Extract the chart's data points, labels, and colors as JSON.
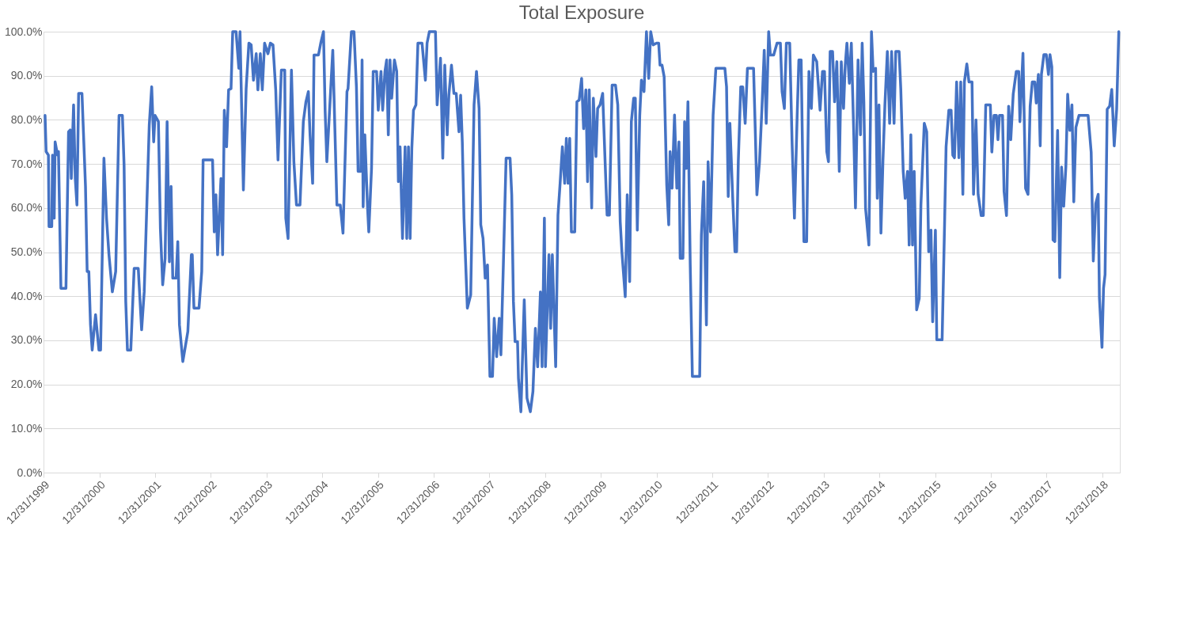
{
  "chart_data": {
    "type": "line",
    "title": "Total Exposure",
    "grid": "y",
    "legend": false,
    "marker": "none",
    "line_style": "solid",
    "xlim": [
      "1999-12-31",
      "2019-04-25"
    ],
    "xticks": [
      {
        "value": "1999-12-31",
        "label": "12/31/1999"
      },
      {
        "value": "2000-12-31",
        "label": "12/31/2000"
      },
      {
        "value": "2001-12-31",
        "label": "12/31/2001"
      },
      {
        "value": "2002-12-31",
        "label": "12/31/2002"
      },
      {
        "value": "2003-12-31",
        "label": "12/31/2003"
      },
      {
        "value": "2004-12-31",
        "label": "12/31/2004"
      },
      {
        "value": "2005-12-31",
        "label": "12/31/2005"
      },
      {
        "value": "2006-12-31",
        "label": "12/31/2006"
      },
      {
        "value": "2007-12-31",
        "label": "12/31/2007"
      },
      {
        "value": "2008-12-31",
        "label": "12/31/2008"
      },
      {
        "value": "2009-12-31",
        "label": "12/31/2009"
      },
      {
        "value": "2010-12-31",
        "label": "12/31/2010"
      },
      {
        "value": "2011-12-31",
        "label": "12/31/2011"
      },
      {
        "value": "2012-12-31",
        "label": "12/31/2012"
      },
      {
        "value": "2013-12-31",
        "label": "12/31/2013"
      },
      {
        "value": "2014-12-31",
        "label": "12/31/2014"
      },
      {
        "value": "2015-12-31",
        "label": "12/31/2015"
      },
      {
        "value": "2016-12-31",
        "label": "12/31/2016"
      },
      {
        "value": "2017-12-31",
        "label": "12/31/2017"
      },
      {
        "value": "2018-12-31",
        "label": "12/31/2018"
      }
    ],
    "ylim": [
      0,
      100
    ],
    "yticks": [
      {
        "value": 0,
        "label": "0.0%"
      },
      {
        "value": 10,
        "label": "10.0%"
      },
      {
        "value": 20,
        "label": "20.0%"
      },
      {
        "value": 30,
        "label": "30.0%"
      },
      {
        "value": 40,
        "label": "40.0%"
      },
      {
        "value": 50,
        "label": "50.0%"
      },
      {
        "value": 60,
        "label": "60.0%"
      },
      {
        "value": 70,
        "label": "70.0%"
      },
      {
        "value": 80,
        "label": "80.0%"
      },
      {
        "value": 90,
        "label": "90.0%"
      },
      {
        "value": 100,
        "label": "100.0%"
      }
    ],
    "series": [
      {
        "color": "#4472c4",
        "x": [
          "2000-01-10",
          "2000-01-17",
          "2000-02-01",
          "2000-02-05",
          "2000-02-23",
          "2000-02-28",
          "2000-03-10",
          "2000-03-16",
          "2000-04-01",
          "2000-04-07",
          "2000-04-23",
          "2000-05-26",
          "2000-06-12",
          "2000-06-23",
          "2000-06-30",
          "2000-07-15",
          "2000-07-26",
          "2000-08-06",
          "2000-08-17",
          "2000-09-08",
          "2000-10-01",
          "2000-10-12",
          "2000-10-23",
          "2000-11-03",
          "2000-11-14",
          "2000-12-06",
          "2000-12-28",
          "2001-01-08",
          "2001-01-30",
          "2001-02-16",
          "2001-03-04",
          "2001-03-26",
          "2001-04-17",
          "2001-05-09",
          "2001-05-31",
          "2001-06-11",
          "2001-06-22",
          "2001-07-03",
          "2001-07-25",
          "2001-08-16",
          "2001-09-12",
          "2001-10-04",
          "2001-10-21",
          "2001-11-23",
          "2001-12-09",
          "2001-12-22",
          "2001-12-31",
          "2002-01-22",
          "2002-02-04",
          "2002-02-19",
          "2002-03-07",
          "2002-03-20",
          "2002-04-04",
          "2002-04-15",
          "2002-04-26",
          "2002-05-18",
          "2002-05-29",
          "2002-06-09",
          "2002-07-01",
          "2002-08-03",
          "2002-08-26",
          "2002-09-01",
          "2002-09-12",
          "2002-10-15",
          "2002-11-02",
          "2002-11-11",
          "2003-01-12",
          "2003-01-23",
          "2003-02-03",
          "2003-02-14",
          "2003-03-08",
          "2003-03-19",
          "2003-03-30",
          "2003-04-14",
          "2003-04-27",
          "2003-05-13",
          "2003-05-24",
          "2003-06-15",
          "2003-07-03",
          "2003-07-11",
          "2003-08-02",
          "2003-08-20",
          "2003-09-07",
          "2003-09-22",
          "2003-10-07",
          "2003-10-25",
          "2003-11-05",
          "2003-11-21",
          "2003-12-04",
          "2003-12-19",
          "2004-01-10",
          "2004-01-26",
          "2004-02-12",
          "2004-03-01",
          "2004-03-16",
          "2004-04-07",
          "2004-04-29",
          "2004-05-06",
          "2004-05-21",
          "2004-06-12",
          "2004-06-28",
          "2004-07-15",
          "2004-08-07",
          "2004-08-29",
          "2004-09-15",
          "2004-10-01",
          "2004-10-12",
          "2004-10-29",
          "2004-11-07",
          "2004-12-06",
          "2004-12-21",
          "2005-01-08",
          "2005-01-19",
          "2005-01-30",
          "2005-03-10",
          "2005-04-06",
          "2005-04-28",
          "2005-05-16",
          "2005-06-11",
          "2005-06-18",
          "2005-07-10",
          "2005-07-27",
          "2005-08-12",
          "2005-08-23",
          "2005-09-10",
          "2005-09-18",
          "2005-09-25",
          "2005-10-06",
          "2005-10-24",
          "2005-11-01",
          "2005-11-19",
          "2005-11-30",
          "2005-12-22",
          "2006-01-02",
          "2006-01-20",
          "2006-01-31",
          "2006-02-15",
          "2006-02-26",
          "2006-03-09",
          "2006-03-20",
          "2006-03-31",
          "2006-04-18",
          "2006-05-03",
          "2006-05-14",
          "2006-05-25",
          "2006-06-10",
          "2006-06-27",
          "2006-07-08",
          "2006-07-19",
          "2006-07-30",
          "2006-08-10",
          "2006-08-21",
          "2006-09-06",
          "2006-09-19",
          "2006-10-16",
          "2006-11-07",
          "2006-11-18",
          "2006-12-03",
          "2007-01-12",
          "2007-01-23",
          "2007-02-14",
          "2007-03-01",
          "2007-03-14",
          "2007-03-30",
          "2007-04-10",
          "2007-04-27",
          "2007-05-13",
          "2007-05-28",
          "2007-06-15",
          "2007-06-26",
          "2007-07-07",
          "2007-07-18",
          "2007-08-09",
          "2007-08-31",
          "2007-09-22",
          "2007-10-08",
          "2007-10-25",
          "2007-11-05",
          "2007-11-20",
          "2007-12-04",
          "2007-12-19",
          "2008-01-04",
          "2008-01-21",
          "2008-02-01",
          "2008-02-17",
          "2008-03-05",
          "2008-03-16",
          "2008-04-01",
          "2008-04-19",
          "2008-05-15",
          "2008-05-26",
          "2008-06-06",
          "2008-06-17",
          "2008-07-03",
          "2008-07-09",
          "2008-07-25",
          "2008-08-16",
          "2008-09-03",
          "2008-09-25",
          "2008-10-12",
          "2008-10-28",
          "2008-11-12",
          "2008-11-30",
          "2008-12-11",
          "2008-12-26",
          "2009-01-02",
          "2009-01-25",
          "2009-02-05",
          "2009-02-16",
          "2009-03-10",
          "2009-03-25",
          "2009-04-08",
          "2009-04-23",
          "2009-05-08",
          "2009-05-19",
          "2009-05-30",
          "2009-06-10",
          "2009-06-21",
          "2009-07-13",
          "2009-07-27",
          "2009-08-11",
          "2009-08-27",
          "2009-09-09",
          "2009-09-24",
          "2009-10-05",
          "2009-10-16",
          "2009-11-01",
          "2009-11-12",
          "2009-11-29",
          "2009-12-10",
          "2009-12-26",
          "2010-01-12",
          "2010-01-28",
          "2010-02-10",
          "2010-02-25",
          "2010-03-15",
          "2010-04-06",
          "2010-04-21",
          "2010-05-07",
          "2010-05-18",
          "2010-06-09",
          "2010-06-22",
          "2010-07-08",
          "2010-07-19",
          "2010-08-03",
          "2010-08-14",
          "2010-08-27",
          "2010-09-12",
          "2010-09-23",
          "2010-10-10",
          "2010-10-26",
          "2010-11-10",
          "2010-11-23",
          "2010-12-09",
          "2010-12-31",
          "2011-01-14",
          "2011-01-23",
          "2011-02-05",
          "2011-02-19",
          "2011-03-08",
          "2011-03-21",
          "2011-03-30",
          "2011-04-12",
          "2011-04-28",
          "2011-05-13",
          "2011-05-27",
          "2011-06-04",
          "2011-06-22",
          "2011-07-03",
          "2011-07-14",
          "2011-07-25",
          "2011-08-09",
          "2011-08-23",
          "2011-10-10",
          "2011-10-21",
          "2011-11-05",
          "2011-11-23",
          "2011-12-04",
          "2011-12-20",
          "2012-01-06",
          "2012-01-24",
          "2012-03-23",
          "2012-04-03",
          "2012-04-14",
          "2012-04-25",
          "2012-05-13",
          "2012-05-28",
          "2012-06-08",
          "2012-06-19",
          "2012-07-05",
          "2012-07-18",
          "2012-08-03",
          "2012-08-18",
          "2012-09-27",
          "2012-10-08",
          "2012-10-19",
          "2012-11-05",
          "2012-11-21",
          "2012-12-06",
          "2012-12-19",
          "2013-01-04",
          "2013-01-15",
          "2013-02-06",
          "2013-02-28",
          "2013-03-22",
          "2013-04-02",
          "2013-04-17",
          "2013-04-30",
          "2013-05-22",
          "2013-06-07",
          "2013-06-22",
          "2013-07-10",
          "2013-07-21",
          "2013-08-05",
          "2013-08-23",
          "2013-09-10",
          "2013-09-25",
          "2013-10-11",
          "2013-10-24",
          "2013-11-15",
          "2013-12-07",
          "2013-12-23",
          "2014-01-05",
          "2014-01-20",
          "2014-01-31",
          "2014-02-11",
          "2014-02-27",
          "2014-03-12",
          "2014-03-27",
          "2014-04-12",
          "2014-04-25",
          "2014-05-10",
          "2014-05-21",
          "2014-06-01",
          "2014-06-17",
          "2014-06-30",
          "2014-07-16",
          "2014-07-27",
          "2014-08-13",
          "2014-08-29",
          "2014-09-09",
          "2014-09-20",
          "2014-10-01",
          "2014-10-23",
          "2014-11-09",
          "2014-11-20",
          "2014-12-06",
          "2014-12-17",
          "2014-12-28",
          "2015-01-10",
          "2015-01-23",
          "2015-02-05",
          "2015-02-21",
          "2015-03-08",
          "2015-03-21",
          "2015-04-06",
          "2015-04-17",
          "2015-05-09",
          "2015-05-20",
          "2015-06-05",
          "2015-06-18",
          "2015-07-03",
          "2015-07-14",
          "2015-07-25",
          "2015-08-05",
          "2015-08-16",
          "2015-09-01",
          "2015-09-18",
          "2015-09-29",
          "2015-10-21",
          "2015-11-06",
          "2015-11-19",
          "2015-12-04",
          "2015-12-15",
          "2016-01-02",
          "2016-01-11",
          "2016-02-15",
          "2016-03-02",
          "2016-03-12",
          "2016-03-30",
          "2016-04-14",
          "2016-04-25",
          "2016-05-06",
          "2016-05-20",
          "2016-06-04",
          "2016-06-16",
          "2016-06-30",
          "2016-07-10",
          "2016-07-26",
          "2016-08-09",
          "2016-08-29",
          "2016-09-08",
          "2016-09-24",
          "2016-10-08",
          "2016-10-28",
          "2016-11-11",
          "2016-11-27",
          "2016-12-27",
          "2017-01-06",
          "2017-01-20",
          "2017-02-05",
          "2017-02-15",
          "2017-02-25",
          "2017-03-17",
          "2017-03-27",
          "2017-04-12",
          "2017-04-26",
          "2017-05-10",
          "2017-05-26",
          "2017-06-15",
          "2017-07-01",
          "2017-07-09",
          "2017-07-29",
          "2017-08-15",
          "2017-08-31",
          "2017-09-14",
          "2017-09-28",
          "2017-10-14",
          "2017-10-24",
          "2017-11-07",
          "2017-11-19",
          "2017-11-27",
          "2017-12-13",
          "2017-12-29",
          "2018-01-12",
          "2018-01-22",
          "2018-02-03",
          "2018-02-11",
          "2018-02-23",
          "2018-03-13",
          "2018-03-27",
          "2018-04-08",
          "2018-04-22",
          "2018-05-06",
          "2018-05-18",
          "2018-06-01",
          "2018-06-15",
          "2018-06-27",
          "2018-07-11",
          "2018-07-31",
          "2018-09-29",
          "2018-10-19",
          "2018-11-02",
          "2018-11-18",
          "2018-12-04",
          "2018-12-12",
          "2018-12-29",
          "2019-01-08",
          "2019-01-18",
          "2019-02-01",
          "2019-02-17",
          "2019-03-03",
          "2019-03-19",
          "2019-04-04",
          "2019-04-18"
        ],
        "values": [
          81,
          72.8,
          72,
          55.8,
          55.8,
          72,
          57.7,
          75,
          72,
          72.8,
          41.8,
          41.8,
          77.3,
          77.7,
          66.7,
          83.4,
          66.7,
          60.7,
          86,
          86,
          65,
          45.6,
          45.6,
          33.5,
          27.8,
          35.8,
          27.8,
          27.8,
          71.3,
          57.7,
          49.4,
          41,
          45.6,
          81,
          81,
          69.8,
          38.8,
          27.8,
          27.8,
          46.3,
          46.3,
          32.4,
          41,
          78.8,
          87.5,
          75,
          81,
          79.6,
          55.4,
          42.6,
          48.6,
          79.6,
          47.8,
          64.9,
          44.1,
          44.1,
          52.4,
          33.5,
          25.2,
          32,
          49.4,
          49.4,
          37.3,
          37.3,
          45.6,
          70.9,
          70.9,
          54.6,
          63,
          49.4,
          66.7,
          49.4,
          82.2,
          73.9,
          86.8,
          87.1,
          100,
          100,
          91.7,
          100,
          64.1,
          87,
          97.4,
          97,
          89,
          95,
          86.8,
          95,
          86.8,
          97.4,
          95,
          97.4,
          97,
          86.8,
          70.9,
          91.3,
          91.3,
          57.7,
          53.1,
          91.3,
          70.5,
          60.7,
          60.7,
          79.6,
          84.1,
          86.4,
          76.6,
          65.6,
          94.7,
          94.7,
          97.4,
          100,
          81.9,
          70.5,
          95.8,
          60.7,
          60.7,
          54.3,
          86.4,
          87.1,
          100,
          100,
          87.5,
          68.3,
          68.3,
          93.6,
          60.3,
          76.6,
          60,
          54.6,
          69,
          91,
          91,
          82.2,
          91,
          82.2,
          91,
          93.6,
          76.6,
          93.6,
          84.9,
          93.6,
          91,
          66,
          73.9,
          53.1,
          73.9,
          53.1,
          73.9,
          53.1,
          73.5,
          82.2,
          83.4,
          97.4,
          97.4,
          89,
          97.4,
          100,
          100,
          83.4,
          94,
          71.3,
          92.4,
          76.6,
          85.6,
          92.4,
          86,
          86,
          77.3,
          85.6,
          75,
          57.7,
          37.3,
          40.3,
          83.4,
          91,
          82.6,
          56.2,
          53.1,
          44.1,
          47.1,
          21.8,
          21.8,
          35,
          26.3,
          35,
          26.7,
          47.1,
          71.3,
          71.3,
          63,
          38.8,
          29.7,
          29.7,
          21.4,
          13.8,
          39.2,
          16.9,
          13.8,
          18.4,
          32.7,
          24,
          41,
          24,
          57.7,
          24,
          49.4,
          32.7,
          49.4,
          24,
          58.4,
          65.6,
          73.9,
          65.6,
          75.8,
          65.6,
          75.8,
          54.6,
          54.6,
          84.1,
          84.5,
          89.4,
          78,
          86.8,
          66,
          86.8,
          60,
          84.9,
          71.7,
          82.6,
          83.4,
          86,
          70.5,
          58.4,
          58.4,
          87.9,
          87.9,
          83.4,
          56.9,
          50.1,
          39.9,
          63,
          43.3,
          79.6,
          84.9,
          84.9,
          55,
          81,
          89,
          86.4,
          100,
          89.4,
          100,
          97,
          97.4,
          97.4,
          92.4,
          92.4,
          89.8,
          65.2,
          56.2,
          72.8,
          64.5,
          81.1,
          64.5,
          75,
          48.6,
          48.6,
          79.6,
          69,
          84.1,
          47.1,
          21.8,
          21.8,
          53.9,
          66,
          33.5,
          70.5,
          54.6,
          81.1,
          91.7,
          91.7,
          87.5,
          62.6,
          79.2,
          62.6,
          50.1,
          50.1,
          70.5,
          87.5,
          87.5,
          79.2,
          91.7,
          91.7,
          78,
          63,
          70.5,
          82.6,
          95.8,
          79.2,
          100,
          94.7,
          94.7,
          97.4,
          97.4,
          86.4,
          82.6,
          97.4,
          97.4,
          74.3,
          57.7,
          81.1,
          93.6,
          93.6,
          52.4,
          52.4,
          91,
          82.6,
          94.7,
          93.2,
          82.2,
          91,
          91,
          72.8,
          70.5,
          95.5,
          95.5,
          84.1,
          93.2,
          68.3,
          93.2,
          82.6,
          92.4,
          97.4,
          88.3,
          97.4,
          76.6,
          60,
          93.6,
          76.6,
          97.4,
          84.1,
          60,
          51.6,
          100,
          91,
          91.7,
          62.2,
          83.4,
          54.3,
          70.5,
          83.4,
          95.5,
          79.2,
          95.5,
          79.2,
          95.5,
          95.5,
          87.1,
          68.3,
          62.2,
          68.3,
          51.6,
          76.6,
          51.6,
          68.3,
          36.9,
          39.5,
          60.7,
          79.2,
          77.3,
          50.1,
          55,
          34.2,
          55,
          30.1,
          30.1,
          56.2,
          73.9,
          82.2,
          82.2,
          72,
          71.4,
          88.6,
          71.4,
          88.6,
          63.1,
          88.6,
          92.7,
          88.6,
          88.6,
          63.1,
          80,
          63.1,
          58.3,
          58.3,
          83.4,
          83.4,
          72.7,
          81,
          81,
          75.5,
          81,
          81,
          63.8,
          58.3,
          83.1,
          75.5,
          85.8,
          91,
          91,
          79.6,
          95.1,
          64.5,
          63.1,
          83.1,
          88.6,
          88.6,
          83.8,
          90.3,
          74.1,
          90.3,
          94.8,
          94.8,
          90.3,
          94.8,
          92,
          52.8,
          52.4,
          77.6,
          44.2,
          69.3,
          60.4,
          69.3,
          85.8,
          77.6,
          83.4,
          61.4,
          78.3,
          81,
          81,
          72.7,
          48,
          61,
          63.1,
          39.7,
          28.4,
          41.8,
          44.9,
          82.4,
          83.1,
          86.9,
          74.1,
          82.4,
          100
        ]
      }
    ]
  }
}
